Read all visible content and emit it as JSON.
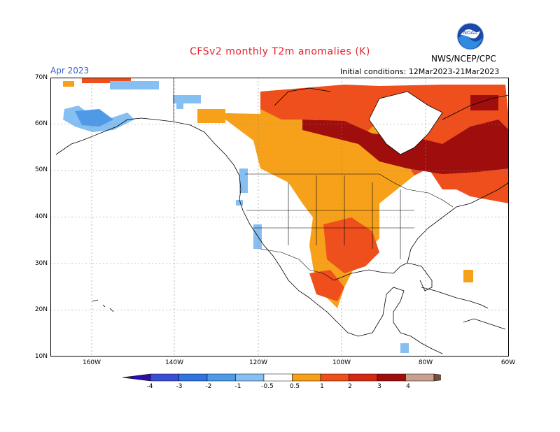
{
  "header": {
    "title": "CFSv2 monthly T2m anomalies (K)",
    "valid_month": "Apr 2023",
    "initial_conditions": "Initial conditions: 12Mar2023-21Mar2023",
    "agency": "NWS/NCEP/CPC"
  },
  "map": {
    "lat_labels": [
      "70N",
      "60N",
      "50N",
      "40N",
      "30N",
      "20N",
      "10N"
    ],
    "lon_labels": [
      "160W",
      "140W",
      "120W",
      "100W",
      "80W",
      "60W"
    ]
  },
  "colorbar": {
    "labels": [
      "-4",
      "-3",
      "-2",
      "-1",
      "-0.5",
      "0.5",
      "1",
      "2",
      "3",
      "4"
    ],
    "colors": [
      "#2b0fa8",
      "#3a4fd6",
      "#2f74e0",
      "#4f9ae8",
      "#86bff2",
      "#ffffff",
      "#f7a11a",
      "#ee4f1c",
      "#d52a12",
      "#a00d0d",
      "#c9a08f",
      "#7a4e38"
    ]
  }
}
